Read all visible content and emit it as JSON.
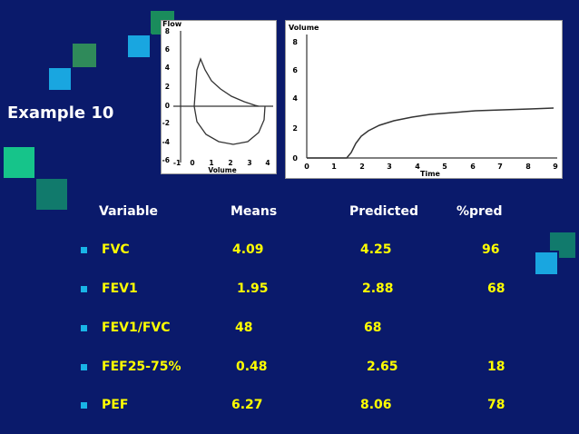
{
  "title": "Example 10",
  "flow_volume_chart": {
    "y_axis_label": "Flow",
    "x_axis_label": "Volume",
    "y_ticks": [
      "8",
      "6",
      "4",
      "2",
      "0",
      "-2",
      "-4",
      "-6"
    ],
    "x_ticks": [
      "-1",
      "0",
      "1",
      "2",
      "3",
      "4"
    ]
  },
  "volume_time_chart": {
    "y_axis_label": "Volume",
    "x_axis_label": "Time",
    "y_ticks": [
      "8",
      "6",
      "4",
      "2",
      "0"
    ],
    "x_ticks": [
      "0",
      "1",
      "2",
      "3",
      "4",
      "5",
      "6",
      "7",
      "8",
      "9"
    ]
  },
  "table": {
    "headers": [
      "Variable",
      "Means",
      "Predicted",
      "%pred"
    ],
    "rows": [
      [
        "FVC",
        "4.09",
        "4.25",
        "96"
      ],
      [
        "FEV1",
        "1.95",
        "2.88",
        "68"
      ],
      [
        "FEV1/FVC",
        "48",
        "68",
        ""
      ],
      [
        "FEF25-75%",
        "0.48",
        "2.65",
        "18"
      ],
      [
        "PEF",
        "6.27",
        "8.06",
        "78"
      ]
    ]
  },
  "colors": {
    "background": "#0a1a6b",
    "text": "#ffffff",
    "values": "#ffff00",
    "bullet": "#19b4e6"
  }
}
